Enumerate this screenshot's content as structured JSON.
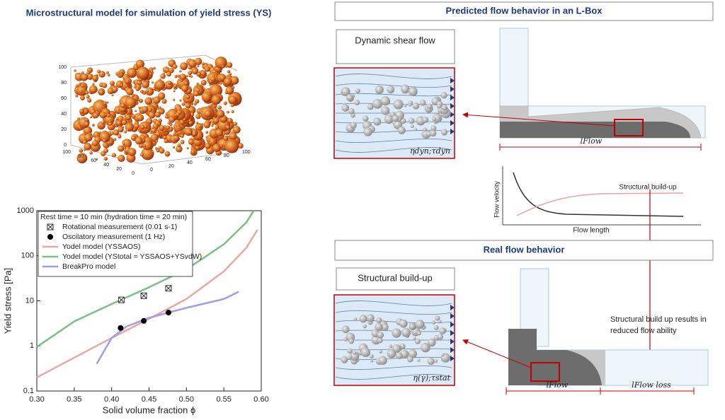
{
  "left_title": "Microstructural model for simulation of yield stress (YS)",
  "cube_axes": {
    "z_ticks": [
      0,
      20,
      40,
      60,
      80,
      100
    ],
    "x_ticks": [
      100,
      80,
      60,
      40,
      20,
      0
    ],
    "y_ticks": [
      0,
      20,
      40,
      60,
      80,
      100
    ]
  },
  "chart_data": {
    "type": "line",
    "annotation": "Rest time = 10 min (hydration time = 20 min)",
    "x_label": "Solid volume fraction ϕ",
    "y_label": "Yield stress [Pa]",
    "xlim": [
      0.3,
      0.6
    ],
    "xticks": [
      {
        "value": 0.3,
        "label": "0.30"
      },
      0.35,
      {
        "value": 0.4,
        "label": "0.40"
      },
      0.45,
      {
        "value": 0.5,
        "label": "0.50"
      },
      0.55,
      {
        "value": 0.6,
        "label": "0.60"
      }
    ],
    "ylim": [
      0.1,
      1000
    ],
    "yticks": [
      0.1,
      1,
      10,
      100,
      1000
    ],
    "log_y": true,
    "series": [
      {
        "name": "Rotational measurement (0.01 s-1)",
        "mode": "markers",
        "marker": "boxed-x",
        "color": "#333333",
        "x": [
          0.413,
          0.443,
          0.476
        ],
        "values": [
          10.5,
          13,
          19
        ]
      },
      {
        "name": "Oscilatory measurement (1 Hz)",
        "mode": "markers",
        "marker": "circle",
        "color": "#000000",
        "x": [
          0.412,
          0.443,
          0.476
        ],
        "values": [
          2.5,
          3.6,
          5.5
        ]
      },
      {
        "name": "Yodel model (YSSAOS)",
        "mode": "line",
        "color": "#eaa8a5",
        "x": [
          0.3,
          0.35,
          0.4,
          0.45,
          0.5,
          0.55,
          0.58,
          0.595
        ],
        "values": [
          0.2,
          0.55,
          1.5,
          4,
          11,
          45,
          150,
          380
        ]
      },
      {
        "name": "Yodel model (YStotal = YSSAOS+YSvdW)",
        "mode": "line",
        "color": "#7cbf88",
        "x": [
          0.3,
          0.35,
          0.4,
          0.45,
          0.5,
          0.55,
          0.58,
          0.59
        ],
        "values": [
          0.95,
          3.5,
          8.5,
          20,
          50,
          180,
          550,
          1000
        ]
      },
      {
        "name": "BreakPro model",
        "mode": "line",
        "color": "#a09ee8",
        "x": [
          0.38,
          0.4,
          0.42,
          0.45,
          0.5,
          0.55,
          0.57
        ],
        "values": [
          0.4,
          1.5,
          2.7,
          4.2,
          7,
          11,
          16
        ]
      }
    ]
  },
  "right": {
    "top_header": "Predicted flow behavior in an L-Box",
    "dynamic_label": "Dynamic shear flow",
    "dynamic_params": "ηdyn;τdyn",
    "top_length": "lFlow",
    "small_chart_y": "Flow velocity",
    "small_chart_x": "Flow length",
    "small_chart_note": "Structural build-up",
    "bottom_header": "Real flow behavior",
    "static_label": "Structural build-up",
    "static_params": "η(γ̇);τstat",
    "result_note_1": "Structural build up results in",
    "result_note_2": "reduced flow ability",
    "bottom_length": "lFlow",
    "bottom_loss": "lFlow loss"
  }
}
